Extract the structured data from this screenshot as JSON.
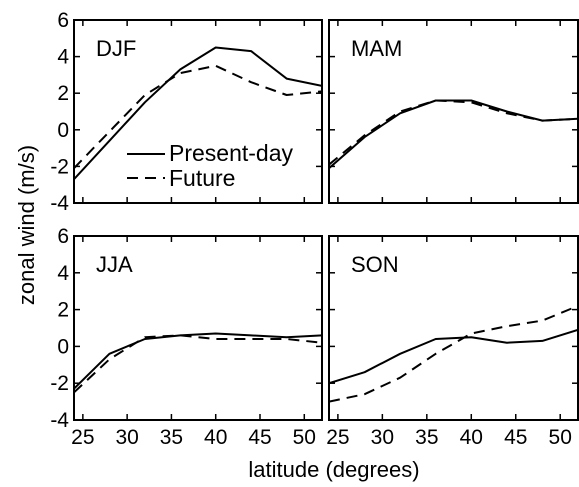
{
  "figure": {
    "xlabel": "latitude (degrees)",
    "ylabel": "zonal wind (m/s)"
  },
  "legend": {
    "solid_label": "Present-day",
    "dashed_label": "Future"
  },
  "chart_data": [
    {
      "type": "line",
      "title": "DJF",
      "xlim": [
        24,
        52
      ],
      "ylim": [
        -4,
        6
      ],
      "x_ticks": [
        25,
        30,
        35,
        40,
        45,
        50
      ],
      "y_ticks": [
        -4,
        -2,
        0,
        2,
        4,
        6
      ],
      "grid": false,
      "series": [
        {
          "name": "Present-day",
          "style": "solid",
          "x": [
            24,
            28,
            32,
            36,
            40,
            44,
            48,
            52
          ],
          "y": [
            -2.7,
            -0.6,
            1.5,
            3.3,
            4.5,
            4.3,
            2.8,
            2.4
          ]
        },
        {
          "name": "Future",
          "style": "dashed",
          "x": [
            24,
            28,
            32,
            36,
            40,
            44,
            48,
            52
          ],
          "y": [
            -2.1,
            -0.1,
            1.9,
            3.1,
            3.5,
            2.6,
            1.9,
            2.1
          ]
        }
      ]
    },
    {
      "type": "line",
      "title": "MAM",
      "xlim": [
        24,
        52
      ],
      "ylim": [
        -4,
        6
      ],
      "x_ticks": [
        25,
        30,
        35,
        40,
        45,
        50
      ],
      "y_ticks": [
        -4,
        -2,
        0,
        2,
        4,
        6
      ],
      "grid": false,
      "series": [
        {
          "name": "Present-day",
          "style": "solid",
          "x": [
            24,
            28,
            32,
            36,
            40,
            44,
            48,
            52
          ],
          "y": [
            -2.1,
            -0.4,
            0.9,
            1.6,
            1.6,
            1.0,
            0.5,
            0.6
          ]
        },
        {
          "name": "Future",
          "style": "dashed",
          "x": [
            24,
            28,
            32,
            36,
            40,
            44,
            48,
            52
          ],
          "y": [
            -1.9,
            -0.3,
            1.0,
            1.6,
            1.5,
            0.9,
            0.5,
            0.6
          ]
        }
      ]
    },
    {
      "type": "line",
      "title": "JJA",
      "xlim": [
        24,
        52
      ],
      "ylim": [
        -4,
        6
      ],
      "x_ticks": [
        25,
        30,
        35,
        40,
        45,
        50
      ],
      "y_ticks": [
        -4,
        -2,
        0,
        2,
        4,
        6
      ],
      "grid": false,
      "series": [
        {
          "name": "Present-day",
          "style": "solid",
          "x": [
            24,
            28,
            32,
            36,
            40,
            44,
            48,
            52
          ],
          "y": [
            -2.3,
            -0.4,
            0.4,
            0.6,
            0.7,
            0.6,
            0.5,
            0.6
          ]
        },
        {
          "name": "Future",
          "style": "dashed",
          "x": [
            24,
            28,
            32,
            36,
            40,
            44,
            48,
            52
          ],
          "y": [
            -2.5,
            -0.7,
            0.5,
            0.6,
            0.4,
            0.4,
            0.4,
            0.2
          ]
        }
      ]
    },
    {
      "type": "line",
      "title": "SON",
      "xlim": [
        24,
        52
      ],
      "ylim": [
        -4,
        6
      ],
      "x_ticks": [
        25,
        30,
        35,
        40,
        45,
        50
      ],
      "y_ticks": [
        -4,
        -2,
        0,
        2,
        4,
        6
      ],
      "grid": false,
      "series": [
        {
          "name": "Present-day",
          "style": "solid",
          "x": [
            24,
            28,
            32,
            36,
            40,
            44,
            48,
            52
          ],
          "y": [
            -2.0,
            -1.4,
            -0.4,
            0.4,
            0.5,
            0.2,
            0.3,
            0.9
          ]
        },
        {
          "name": "Future",
          "style": "dashed",
          "x": [
            24,
            28,
            32,
            36,
            40,
            44,
            48,
            52
          ],
          "y": [
            -3.0,
            -2.6,
            -1.7,
            -0.4,
            0.7,
            1.1,
            1.4,
            2.2
          ]
        }
      ]
    }
  ]
}
